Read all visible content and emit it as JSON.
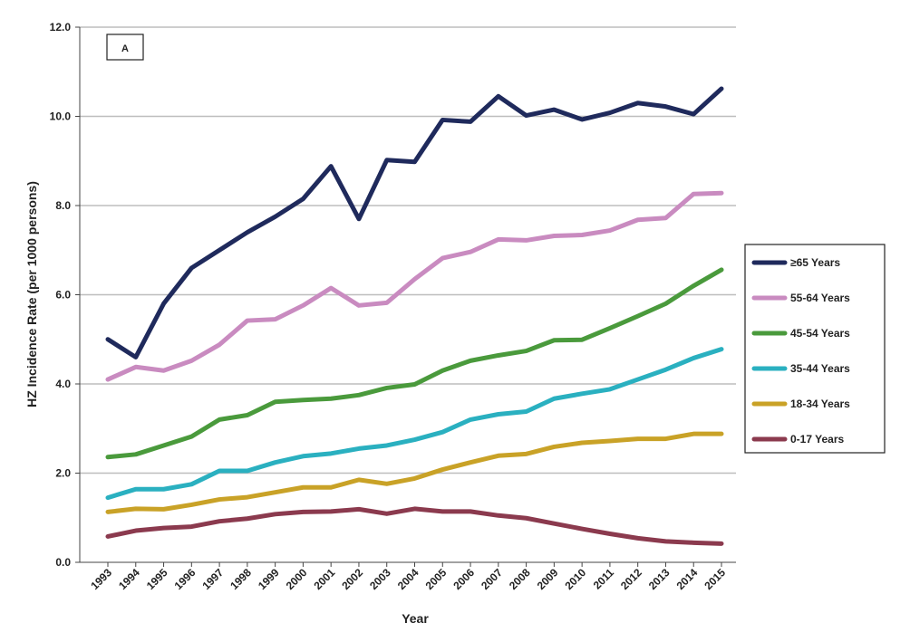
{
  "chart_data": {
    "type": "line",
    "panel_label": "A",
    "title": "",
    "xlabel": "Year",
    "ylabel": "HZ Incidence Rate (per 1000 persons)",
    "ylim": [
      0,
      12
    ],
    "yticks": [
      "0.0",
      "2.0",
      "4.0",
      "6.0",
      "8.0",
      "10.0",
      "12.0"
    ],
    "grid": true,
    "legend_position": "right",
    "x": [
      1993,
      1994,
      1995,
      1996,
      1997,
      1998,
      1999,
      2000,
      2001,
      2002,
      2003,
      2004,
      2005,
      2006,
      2007,
      2008,
      2009,
      2010,
      2011,
      2012,
      2013,
      2014,
      2015
    ],
    "series": [
      {
        "name": "≥65 Years",
        "color": "#1f2a5c",
        "values": [
          5.0,
          4.6,
          5.8,
          6.6,
          7.0,
          7.4,
          7.75,
          8.15,
          8.88,
          7.7,
          9.02,
          8.98,
          9.92,
          9.88,
          10.45,
          10.02,
          10.15,
          9.93,
          10.08,
          10.3,
          10.22,
          10.05,
          10.62
        ]
      },
      {
        "name": "55-64 Years",
        "color": "#c98bc0",
        "values": [
          4.1,
          4.38,
          4.3,
          4.52,
          4.88,
          5.42,
          5.45,
          5.76,
          6.15,
          5.76,
          5.82,
          6.35,
          6.82,
          6.96,
          7.24,
          7.22,
          7.32,
          7.34,
          7.44,
          7.68,
          7.72,
          8.26,
          8.28
        ]
      },
      {
        "name": "45-54 Years",
        "color": "#4a9a3c",
        "values": [
          2.36,
          2.42,
          2.62,
          2.82,
          3.2,
          3.3,
          3.6,
          3.64,
          3.67,
          3.75,
          3.91,
          3.99,
          4.3,
          4.52,
          4.64,
          4.74,
          4.98,
          4.99,
          5.25,
          5.52,
          5.8,
          6.2,
          6.56
        ]
      },
      {
        "name": "35-44  Years",
        "color": "#2ab0c0",
        "values": [
          1.45,
          1.64,
          1.64,
          1.75,
          2.05,
          2.05,
          2.24,
          2.38,
          2.44,
          2.55,
          2.62,
          2.75,
          2.92,
          3.2,
          3.32,
          3.38,
          3.67,
          3.78,
          3.88,
          4.1,
          4.32,
          4.58,
          4.78
        ]
      },
      {
        "name": "18-34 Years",
        "color": "#c9a227",
        "values": [
          1.13,
          1.2,
          1.19,
          1.29,
          1.41,
          1.46,
          1.57,
          1.68,
          1.68,
          1.85,
          1.76,
          1.88,
          2.08,
          2.24,
          2.39,
          2.43,
          2.59,
          2.68,
          2.72,
          2.77,
          2.77,
          2.88,
          2.88
        ]
      },
      {
        "name": "0-17 Years",
        "color": "#8b3a4e",
        "values": [
          0.58,
          0.71,
          0.77,
          0.8,
          0.92,
          0.98,
          1.08,
          1.13,
          1.14,
          1.19,
          1.09,
          1.2,
          1.14,
          1.14,
          1.05,
          0.99,
          0.87,
          0.75,
          0.64,
          0.54,
          0.47,
          0.44,
          0.42
        ]
      }
    ]
  }
}
